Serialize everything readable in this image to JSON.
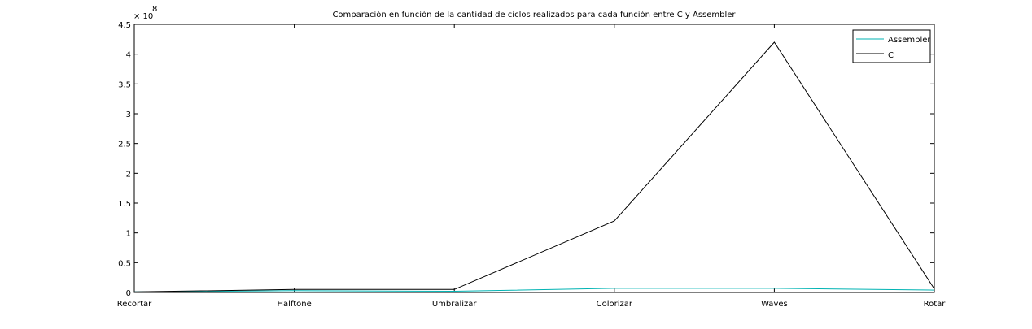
{
  "chart_data": {
    "type": "line",
    "title": "Comparación en función de la cantidad de ciclos realizados para cada función entre C y Assembler",
    "xlabel": "",
    "ylabel": "",
    "categories": [
      "Recortar",
      "Halftone",
      "Umbralizar",
      "Colorizar",
      "Waves",
      "Rotar"
    ],
    "y_ticks": [
      "0",
      "0.5",
      "1",
      "1.5",
      "2",
      "2.5",
      "3",
      "3.5",
      "4",
      "4.5"
    ],
    "y_exponent": {
      "base": "× 10",
      "power": "8"
    },
    "ylim": [
      0,
      450000000
    ],
    "y_tick_step": 50000000,
    "grid": false,
    "legend_position": "top-right",
    "series": [
      {
        "name": "Assembler",
        "color": "#00b3b3",
        "values": [
          1000000,
          3000000,
          2000000,
          7000000,
          7000000,
          4000000
        ]
      },
      {
        "name": "C",
        "color": "#000000",
        "values": [
          1000000,
          5000000,
          5000000,
          120000000,
          420000000,
          6000000
        ]
      }
    ]
  }
}
